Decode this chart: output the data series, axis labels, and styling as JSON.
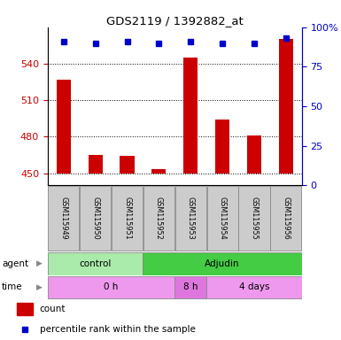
{
  "title": "GDS2119 / 1392882_at",
  "samples": [
    "GSM115949",
    "GSM115950",
    "GSM115951",
    "GSM115952",
    "GSM115953",
    "GSM115954",
    "GSM115955",
    "GSM115956"
  ],
  "counts": [
    527,
    465,
    464,
    453,
    545,
    494,
    481,
    560
  ],
  "percentile_ranks": [
    91,
    90,
    91,
    90,
    91,
    90,
    90,
    93
  ],
  "ylim_left": [
    440,
    570
  ],
  "ylim_right": [
    0,
    100
  ],
  "yticks_left": [
    450,
    480,
    510,
    540
  ],
  "yticks_right": [
    0,
    25,
    50,
    75,
    100
  ],
  "bar_color": "#cc0000",
  "marker_color": "#0000cc",
  "bar_baseline": 450,
  "agent_groups": [
    {
      "label": "control",
      "start": 0,
      "end": 3,
      "color": "#aaeaaa"
    },
    {
      "label": "Adjudin",
      "start": 3,
      "end": 8,
      "color": "#44cc44"
    }
  ],
  "time_groups": [
    {
      "label": "0 h",
      "start": 0,
      "end": 4,
      "color": "#ee99ee"
    },
    {
      "label": "8 h",
      "start": 4,
      "end": 5,
      "color": "#dd77dd"
    },
    {
      "label": "4 days",
      "start": 5,
      "end": 8,
      "color": "#ee99ee"
    }
  ],
  "legend_count_label": "count",
  "legend_pct_label": "percentile rank within the sample",
  "agent_label": "agent",
  "time_label": "time",
  "tick_label_color_left": "#cc0000",
  "tick_label_color_right": "#0000cc",
  "sample_box_color": "#cccccc"
}
